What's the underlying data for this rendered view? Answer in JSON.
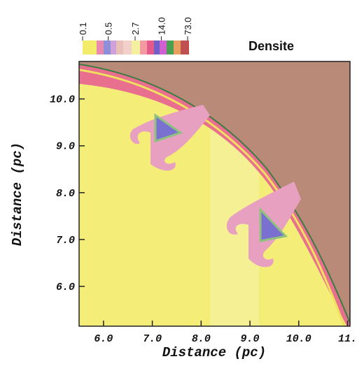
{
  "chart_data": {
    "type": "image",
    "xlabel": "Distance (pc)",
    "ylabel": "Distance (pc)",
    "xlim": [
      5.5,
      11.05
    ],
    "xticks": [
      {
        "value": 6,
        "label": "6.0"
      },
      {
        "value": 7,
        "label": "7.0"
      },
      {
        "value": 8,
        "label": "8.0"
      },
      {
        "value": 9,
        "label": "9.0"
      },
      {
        "value": 10,
        "label": "10.0"
      },
      {
        "value": 11,
        "label": "11."
      }
    ],
    "ylim": [
      5.15,
      10.8
    ],
    "yticks": [
      {
        "value": 6,
        "label": "6.0"
      },
      {
        "value": 7,
        "label": "7.0"
      },
      {
        "value": 8,
        "label": "8.0"
      },
      {
        "value": 9,
        "label": "9.0"
      },
      {
        "value": 10,
        "label": "10.0"
      }
    ],
    "colorbar": {
      "title": "Densite",
      "scale": "log",
      "clim": [
        0.1,
        73
      ],
      "ticks": [
        0.1,
        0.5,
        2.7,
        {
          "value": 14,
          "label": "14.0"
        },
        {
          "value": 73,
          "label": "73.0"
        }
      ]
    }
  }
}
